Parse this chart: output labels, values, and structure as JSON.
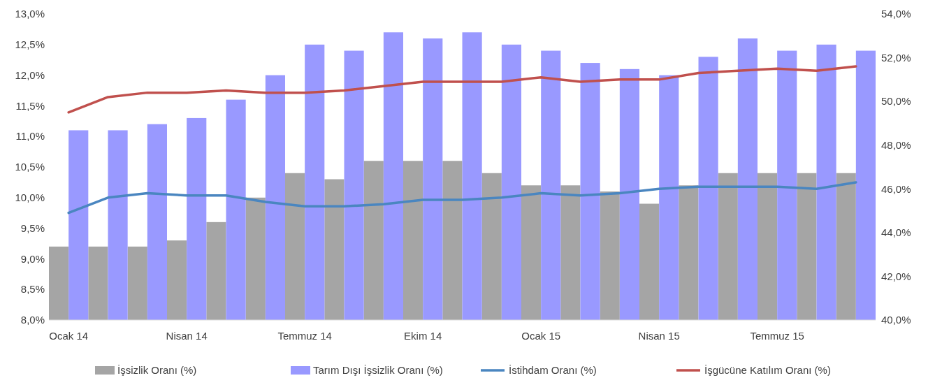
{
  "chart_data": {
    "type": "bar",
    "categories": [
      "Ocak 14",
      null,
      null,
      "Nisan 14",
      null,
      null,
      "Temmuz 14",
      null,
      null,
      "Ekim 14",
      null,
      null,
      "Ocak 15",
      null,
      null,
      "Nisan 15",
      null,
      null,
      "Temmuz 15",
      null,
      null
    ],
    "series": [
      {
        "name": "İşsizlik Oranı (%)",
        "color": "#a5a5a5",
        "values": [
          9.2,
          9.2,
          9.2,
          9.3,
          9.6,
          10.0,
          10.4,
          10.3,
          10.6,
          10.6,
          10.6,
          10.4,
          10.2,
          10.2,
          10.1,
          9.9,
          10.2,
          10.4,
          10.4,
          10.4,
          10.4
        ]
      },
      {
        "name": "Tarım Dışı İşsizlik Oranı (%)",
        "color": "#9999ff",
        "values": [
          11.1,
          11.1,
          11.2,
          11.3,
          11.6,
          12.0,
          12.5,
          12.4,
          12.7,
          12.6,
          12.7,
          12.5,
          12.4,
          12.2,
          12.1,
          12.0,
          12.3,
          12.6,
          12.4,
          12.5,
          12.4
        ]
      },
      {
        "name": "İstihdam Oranı (%)",
        "color": "#4a86c0",
        "type": "line",
        "axis": "y2",
        "values": [
          44.9,
          45.6,
          45.8,
          45.7,
          45.7,
          45.4,
          45.2,
          45.2,
          45.3,
          45.5,
          45.5,
          45.6,
          45.8,
          45.7,
          45.8,
          46.0,
          46.1,
          46.1,
          46.1,
          46.0,
          46.3
        ]
      },
      {
        "name": "İşgücüne Katılım Oranı (%)",
        "color": "#c0504d",
        "type": "line",
        "axis": "y2",
        "values": [
          49.5,
          50.2,
          50.4,
          50.4,
          50.5,
          50.4,
          50.4,
          50.5,
          50.7,
          50.9,
          50.9,
          50.9,
          51.1,
          50.9,
          51.0,
          51.0,
          51.3,
          51.4,
          51.5,
          51.4,
          51.6
        ]
      }
    ],
    "ylim": [
      8,
      13
    ],
    "yticks": [
      {
        "value": 8,
        "label": "8,0%"
      },
      {
        "value": 8.5,
        "label": "8,5%"
      },
      {
        "value": 9,
        "label": "9,0%"
      },
      {
        "value": 9.5,
        "label": "9,5%"
      },
      {
        "value": 10,
        "label": "10,0%"
      },
      {
        "value": 10.5,
        "label": "10,5%"
      },
      {
        "value": 11,
        "label": "11,0%"
      },
      {
        "value": 11.5,
        "label": "11,5%"
      },
      {
        "value": 12,
        "label": "12,0%"
      },
      {
        "value": 12.5,
        "label": "12,5%"
      },
      {
        "value": 13,
        "label": "13,0%"
      }
    ],
    "y2lim": [
      40,
      54
    ],
    "y2ticks": [
      {
        "value": 40,
        "label": "40,0%"
      },
      {
        "value": 42,
        "label": "42,0%"
      },
      {
        "value": 44,
        "label": "44,0%"
      },
      {
        "value": 46,
        "label": "46,0%"
      },
      {
        "value": 48,
        "label": "48,0%"
      },
      {
        "value": 50,
        "label": "50,0%"
      },
      {
        "value": 52,
        "label": "52,0%"
      },
      {
        "value": 54,
        "label": "54,0%"
      }
    ],
    "grid": false,
    "legend": "bottom",
    "marker": "none",
    "line_style": "solid"
  }
}
